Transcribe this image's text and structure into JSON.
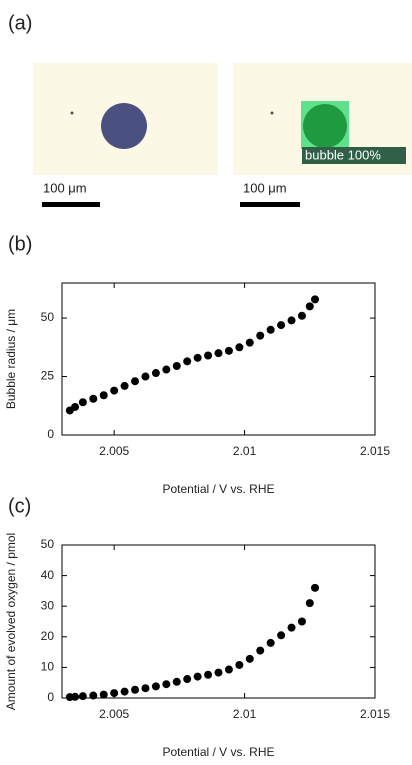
{
  "panel_a": {
    "label": "(a)",
    "scale_bars": [
      "100 μm",
      "100 μm"
    ],
    "detection_label": "bubble 100%"
  },
  "chart_data": [
    {
      "type": "scatter",
      "panel_label": "(b)",
      "xlabel": "Potential / V vs. RHE",
      "ylabel": "Bubble radius / μm",
      "color": "#000000",
      "x": [
        2.0033,
        2.0035,
        2.0038,
        2.0042,
        2.0046,
        2.005,
        2.0054,
        2.0058,
        2.0062,
        2.0066,
        2.007,
        2.0074,
        2.0078,
        2.0082,
        2.0086,
        2.009,
        2.0094,
        2.0098,
        2.0102,
        2.0106,
        2.011,
        2.0114,
        2.0118,
        2.0122,
        2.0125,
        2.0127
      ],
      "values": [
        10.5,
        12,
        14,
        15.5,
        17,
        19,
        21,
        23,
        25,
        26.5,
        28,
        29.5,
        31.5,
        33,
        34,
        35,
        36,
        37.5,
        39.5,
        42.5,
        45,
        47,
        49,
        51,
        55,
        58
      ],
      "xlim": [
        2.003,
        2.015
      ],
      "xticks": [
        2.005,
        2.01,
        2.015
      ],
      "ylim": [
        0,
        65
      ],
      "yticks": [
        0,
        25,
        50
      ]
    },
    {
      "type": "scatter",
      "panel_label": "(c)",
      "xlabel": "Potential / V vs. RHE",
      "ylabel": "Amount of evolved oxygen / pmol",
      "color": "#000000",
      "x": [
        2.0033,
        2.0035,
        2.0038,
        2.0042,
        2.0046,
        2.005,
        2.0054,
        2.0058,
        2.0062,
        2.0066,
        2.007,
        2.0074,
        2.0078,
        2.0082,
        2.0086,
        2.009,
        2.0094,
        2.0098,
        2.0102,
        2.0106,
        2.011,
        2.0114,
        2.0118,
        2.0122,
        2.0125,
        2.0127
      ],
      "values": [
        0.3,
        0.4,
        0.6,
        0.8,
        1.1,
        1.6,
        2.1,
        2.7,
        3.2,
        3.8,
        4.5,
        5.3,
        6.2,
        7,
        7.6,
        8.3,
        9.3,
        10.8,
        12.8,
        15.5,
        18,
        20.5,
        23,
        25,
        31,
        36
      ],
      "xlim": [
        2.003,
        2.015
      ],
      "xticks": [
        2.005,
        2.01,
        2.015
      ],
      "ylim": [
        0,
        50
      ],
      "yticks": [
        0,
        10,
        20,
        30,
        40,
        50
      ]
    }
  ]
}
